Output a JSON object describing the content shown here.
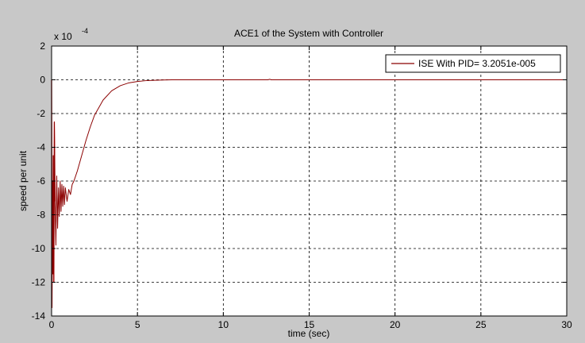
{
  "chart_data": {
    "type": "line",
    "title": "ACE1 of the System with Controller",
    "xlabel": "time (sec)",
    "ylabel": "speed per unit",
    "y_exponent_label": "x 10",
    "y_exponent_power": "-4",
    "xlim": [
      0,
      30
    ],
    "ylim": [
      -14,
      2
    ],
    "x_ticks": [
      "0",
      "5",
      "10",
      "15",
      "20",
      "25",
      "30"
    ],
    "y_ticks": [
      "2",
      "0",
      "-2",
      "-4",
      "-6",
      "-8",
      "-10",
      "-12",
      "-14"
    ],
    "grid": true,
    "legend_position": "top-right",
    "colors": {
      "figure_bg": "#c8c8c8",
      "axes_bg": "#ffffff",
      "line": "#8b0000",
      "spike": "#cc0000"
    },
    "series": [
      {
        "name": "ISE With PID= 3.2051e-005",
        "x": [
          0,
          0.02,
          0.05,
          0.08,
          0.1,
          0.13,
          0.16,
          0.2,
          0.25,
          0.3,
          0.35,
          0.4,
          0.45,
          0.5,
          0.55,
          0.6,
          0.65,
          0.7,
          0.75,
          0.8,
          0.9,
          1.0,
          1.1,
          1.2,
          1.3,
          1.5,
          1.75,
          2.0,
          2.25,
          2.5,
          3.0,
          3.5,
          4.0,
          4.5,
          5.0,
          5.5,
          6.0,
          6.5,
          7.0,
          8.0,
          10.0,
          12.6,
          12.7,
          12.8,
          15.0,
          20.0,
          25.0,
          30.0
        ],
        "y": [
          0,
          -13.5,
          -6.0,
          -11.5,
          -4.5,
          -12.0,
          -2.5,
          -7.2,
          -9.8,
          -5.7,
          -8.8,
          -6.4,
          -8.1,
          -6.0,
          -7.8,
          -6.2,
          -7.5,
          -6.3,
          -7.4,
          -6.4,
          -7.2,
          -6.5,
          -6.8,
          -6.2,
          -6.0,
          -5.4,
          -4.5,
          -3.6,
          -2.8,
          -2.1,
          -1.2,
          -0.65,
          -0.35,
          -0.18,
          -0.1,
          -0.05,
          -0.03,
          -0.01,
          0,
          0,
          0,
          0,
          0.03,
          0,
          0,
          0,
          0,
          0
        ]
      }
    ]
  }
}
